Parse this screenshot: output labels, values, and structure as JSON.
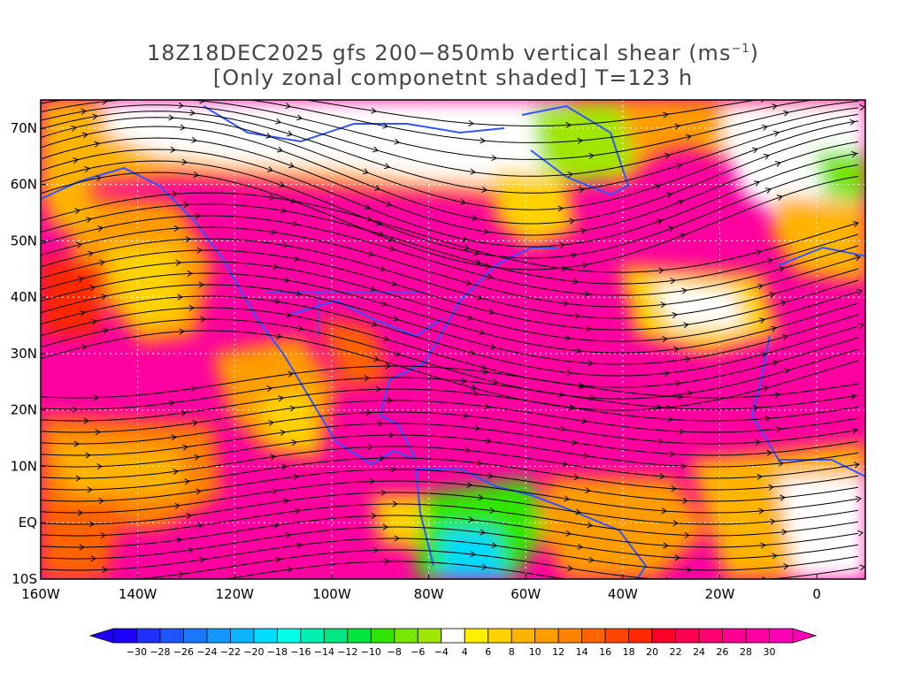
{
  "title": {
    "line1_prefix": "18Z18DEC2025 gfs 200−850mb vertical shear (ms",
    "line1_exp": "−1",
    "line1_suffix": ")",
    "line2": "[Only zonal componetnt shaded] T=123 h"
  },
  "map": {
    "lon_labels": [
      "160W",
      "140W",
      "120W",
      "100W",
      "80W",
      "60W",
      "40W",
      "20W",
      "0"
    ],
    "lat_labels": [
      "70N",
      "60N",
      "50N",
      "40N",
      "30N",
      "20N",
      "10N",
      "EQ",
      "10S"
    ],
    "lon_values": [
      -160,
      -140,
      -120,
      -100,
      -80,
      -60,
      -40,
      -20,
      0
    ],
    "lat_values": [
      70,
      60,
      50,
      40,
      30,
      20,
      10,
      0,
      -10
    ],
    "lon_range": [
      -160,
      10
    ],
    "lat_range": [
      -10,
      75
    ],
    "grid": "dotted",
    "coastline_color": "#3355ff",
    "streamline_color": "#000000"
  },
  "colorbar": {
    "labels": [
      "−30",
      "−28",
      "−26",
      "−24",
      "−22",
      "−20",
      "−18",
      "−16",
      "−14",
      "−12",
      "−10",
      "−8",
      "−6",
      "−4",
      "4",
      "6",
      "8",
      "10",
      "12",
      "14",
      "16",
      "18",
      "20",
      "22",
      "24",
      "26",
      "28",
      "30"
    ],
    "colors": [
      "#1e00ff",
      "#2030ff",
      "#1e55ff",
      "#1a78ff",
      "#1298ff",
      "#0cb6ff",
      "#00dcff",
      "#00ffe6",
      "#00f0b4",
      "#00e680",
      "#00e640",
      "#30e600",
      "#78e600",
      "#a0e600",
      "#ffffff",
      "#fff000",
      "#ffd200",
      "#ffb400",
      "#ff9c00",
      "#ff8200",
      "#ff6400",
      "#ff4600",
      "#ff2800",
      "#ff0028",
      "#ff0050",
      "#ff0070",
      "#ff0090",
      "#ff00a0",
      "#ff00b4"
    ]
  }
}
